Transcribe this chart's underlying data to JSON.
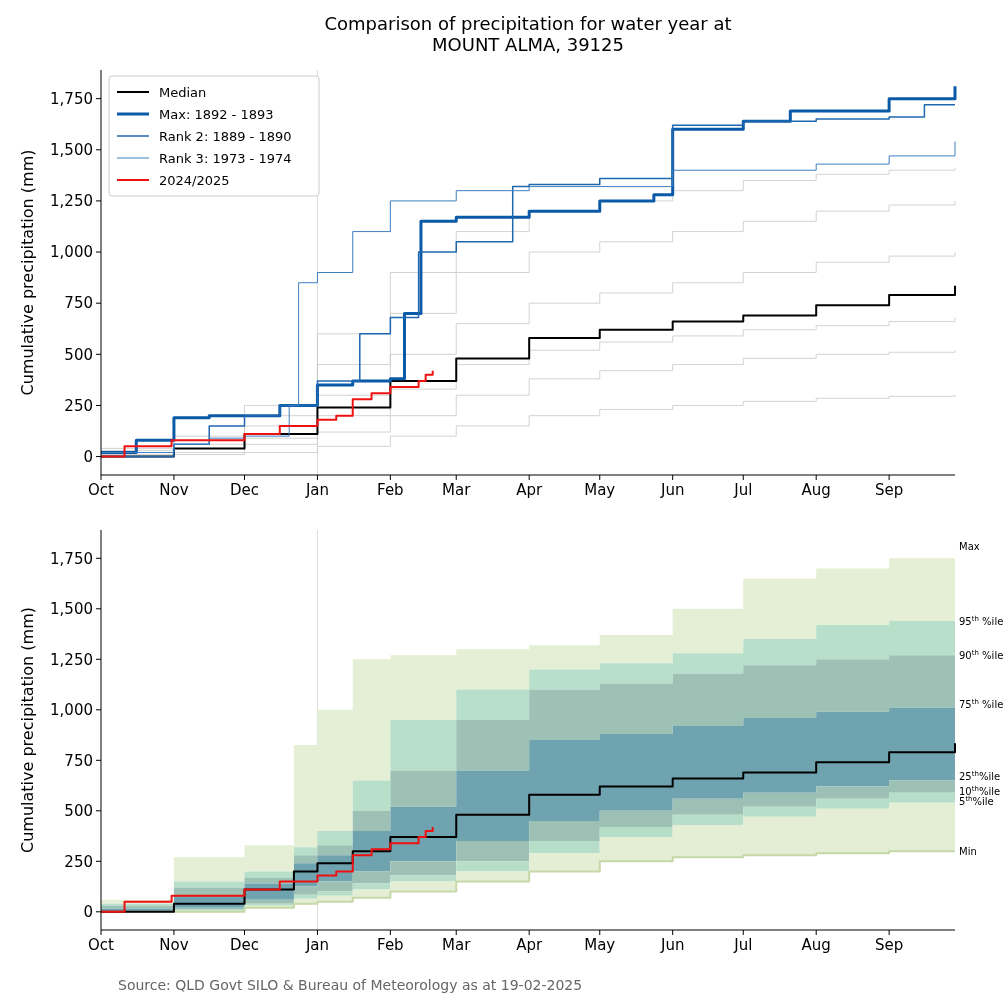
{
  "chart_data": [
    {
      "type": "step",
      "title": "Comparison of precipitation for water year at\nMOUNT ALMA, 39125",
      "ylabel": "Cumulative precipitation (mm)",
      "legend": "top left",
      "xlim": [
        "2024-10-01",
        "2025-09-29"
      ],
      "xticks": [
        {
          "value": "2024-10-01",
          "label": "Oct"
        },
        {
          "value": "2024-11-01",
          "label": "Nov"
        },
        {
          "value": "2024-12-01",
          "label": "Dec"
        },
        {
          "value": "2025-01-01",
          "label": "Jan"
        },
        {
          "value": "2025-02-01",
          "label": "Feb"
        },
        {
          "value": "2025-03-01",
          "label": "Mar"
        },
        {
          "value": "2025-04-01",
          "label": "Apr"
        },
        {
          "value": "2025-05-01",
          "label": "May"
        },
        {
          "value": "2025-06-01",
          "label": "Jun"
        },
        {
          "value": "2025-07-01",
          "label": "Jul"
        },
        {
          "value": "2025-08-01",
          "label": "Aug"
        },
        {
          "value": "2025-09-01",
          "label": "Sep"
        }
      ],
      "ylim": [
        -90,
        1890
      ],
      "yticks": [
        0,
        250,
        500,
        750,
        {
          "value": 1000,
          "label": "1,000"
        },
        {
          "value": 1250,
          "label": "1,250"
        },
        {
          "value": 1500,
          "label": "1,500"
        },
        {
          "value": 1750,
          "label": "1,750"
        }
      ],
      "ref_lines": [
        {
          "axis": "x",
          "value": "2025-01-01",
          "label": null,
          "color": "#dddddd"
        }
      ],
      "x": [
        "2024-10-01",
        "2024-11-01",
        "2024-12-01",
        "2025-01-01",
        "2025-02-01",
        "2025-03-01",
        "2025-04-01",
        "2025-05-01",
        "2025-06-01",
        "2025-07-01",
        "2025-08-01",
        "2025-09-01",
        "2025-09-29"
      ],
      "series": [
        {
          "color": "#c8c8c8",
          "values": [
            0,
            10,
            20,
            50,
            100,
            150,
            200,
            230,
            250,
            270,
            285,
            295,
            300
          ]
        },
        {
          "color": "#c8c8c8",
          "values": [
            0,
            20,
            60,
            120,
            200,
            300,
            380,
            420,
            450,
            480,
            500,
            510,
            520
          ]
        },
        {
          "color": "#c8c8c8",
          "values": [
            10,
            40,
            90,
            200,
            330,
            450,
            520,
            560,
            590,
            620,
            640,
            660,
            680
          ]
        },
        {
          "color": "#c8c8c8",
          "values": [
            20,
            60,
            150,
            300,
            500,
            650,
            750,
            800,
            850,
            900,
            950,
            980,
            1000
          ]
        },
        {
          "color": "#c8c8c8",
          "values": [
            30,
            80,
            200,
            450,
            700,
            900,
            1000,
            1050,
            1100,
            1150,
            1200,
            1230,
            1250
          ]
        },
        {
          "color": "#c8c8c8",
          "values": [
            40,
            100,
            250,
            600,
            900,
            1100,
            1200,
            1250,
            1300,
            1350,
            1380,
            1400,
            1410
          ]
        },
        {
          "name": "Median",
          "color": "#000000",
          "values": [
            0,
            40,
            110,
            240,
            370,
            480,
            580,
            620,
            660,
            690,
            740,
            790,
            835
          ]
        },
        {
          "name": "Max: 1892 - 1893",
          "color": "#0b5aa8",
          "x": [
            "2024-10-01",
            "2024-10-16",
            "2024-11-01",
            "2024-11-16",
            "2024-12-01",
            "2024-12-16",
            "2025-01-01",
            "2025-01-16",
            "2025-02-01",
            "2025-02-07",
            "2025-02-14",
            "2025-03-01",
            "2025-04-01",
            "2025-05-01",
            "2025-05-24",
            "2025-06-01",
            "2025-07-01",
            "2025-07-21",
            "2025-09-01",
            "2025-09-29"
          ],
          "values": [
            20,
            80,
            190,
            200,
            200,
            250,
            350,
            370,
            380,
            700,
            1150,
            1170,
            1200,
            1250,
            1280,
            1600,
            1640,
            1690,
            1750,
            1810
          ]
        },
        {
          "name": "Rank 2: 1889 - 1890",
          "color": "#1f68b0",
          "x": [
            "2024-10-01",
            "2024-11-01",
            "2024-11-16",
            "2024-12-01",
            "2024-12-16",
            "2025-01-01",
            "2025-01-19",
            "2025-02-01",
            "2025-02-13",
            "2025-03-01",
            "2025-03-25",
            "2025-04-01",
            "2025-05-01",
            "2025-06-01",
            "2025-07-01",
            "2025-08-01",
            "2025-09-01",
            "2025-09-16",
            "2025-09-29"
          ],
          "values": [
            0,
            60,
            150,
            200,
            250,
            370,
            600,
            680,
            1000,
            1050,
            1320,
            1330,
            1360,
            1620,
            1640,
            1650,
            1660,
            1720,
            1720
          ]
        },
        {
          "name": "Rank 3: 1973 - 1974",
          "color": "#3d7fc0",
          "x": [
            "2024-10-01",
            "2024-11-01",
            "2024-11-16",
            "2024-12-01",
            "2024-12-20",
            "2024-12-24",
            "2025-01-01",
            "2025-01-16",
            "2025-02-01",
            "2025-03-01",
            "2025-04-01",
            "2025-06-01",
            "2025-08-01",
            "2025-09-01",
            "2025-09-29"
          ],
          "values": [
            20,
            60,
            90,
            100,
            250,
            850,
            900,
            1100,
            1250,
            1300,
            1320,
            1400,
            1430,
            1470,
            1540
          ]
        },
        {
          "name": "2024/2025",
          "color": "#ee1111",
          "x": [
            "2024-10-01",
            "2024-10-09",
            "2024-10-11",
            "2024-10-31",
            "2024-12-01",
            "2024-12-16",
            "2025-01-01",
            "2025-01-09",
            "2025-01-16",
            "2025-01-24",
            "2025-02-01",
            "2025-02-13",
            "2025-02-16",
            "2025-02-19"
          ],
          "values": [
            0,
            0,
            50,
            80,
            110,
            150,
            180,
            200,
            280,
            310,
            340,
            370,
            400,
            420
          ]
        }
      ]
    },
    {
      "type": "step",
      "ylabel": "Cumulative precipitation (mm)",
      "xlim": [
        "2024-10-01",
        "2025-09-29"
      ],
      "xticks": [
        {
          "value": "2024-10-01",
          "label": "Oct"
        },
        {
          "value": "2024-11-01",
          "label": "Nov"
        },
        {
          "value": "2024-12-01",
          "label": "Dec"
        },
        {
          "value": "2025-01-01",
          "label": "Jan"
        },
        {
          "value": "2025-02-01",
          "label": "Feb"
        },
        {
          "value": "2025-03-01",
          "label": "Mar"
        },
        {
          "value": "2025-04-01",
          "label": "Apr"
        },
        {
          "value": "2025-05-01",
          "label": "May"
        },
        {
          "value": "2025-06-01",
          "label": "Jun"
        },
        {
          "value": "2025-07-01",
          "label": "Jul"
        },
        {
          "value": "2025-08-01",
          "label": "Aug"
        },
        {
          "value": "2025-09-01",
          "label": "Sep"
        }
      ],
      "ylim": [
        -90,
        1890
      ],
      "yticks": [
        0,
        250,
        500,
        750,
        {
          "value": 1000,
          "label": "1,000"
        },
        {
          "value": 1250,
          "label": "1,250"
        },
        {
          "value": 1500,
          "label": "1,500"
        },
        {
          "value": 1750,
          "label": "1,750"
        }
      ],
      "ref_lines": [
        {
          "axis": "x",
          "value": "2025-01-01",
          "label": null,
          "color": "#dddddd"
        }
      ],
      "x": [
        "2024-10-01",
        "2024-11-01",
        "2024-12-01",
        "2024-12-22",
        "2025-01-01",
        "2025-01-16",
        "2025-02-01",
        "2025-03-01",
        "2025-04-01",
        "2025-05-01",
        "2025-06-01",
        "2025-07-01",
        "2025-08-01",
        "2025-09-01",
        "2025-09-29"
      ],
      "series": [
        {
          "type": "area",
          "name": "Max",
          "color": "#e5efd5",
          "values": [
            60,
            270,
            330,
            826,
            1000,
            1250,
            1270,
            1300,
            1320,
            1370,
            1500,
            1650,
            1700,
            1750,
            1810
          ]
        },
        {
          "type": "area",
          "name": "95$^{th}$ %ile",
          "color": "#b8dfc9",
          "values": [
            40,
            150,
            200,
            320,
            400,
            650,
            950,
            1100,
            1200,
            1230,
            1280,
            1350,
            1420,
            1440,
            1440
          ]
        },
        {
          "type": "area",
          "name": "90$^{th}$ %ile",
          "color": "#9dc2b5",
          "values": [
            30,
            120,
            170,
            280,
            330,
            500,
            700,
            950,
            1100,
            1130,
            1180,
            1220,
            1250,
            1270,
            1270
          ]
        },
        {
          "type": "area",
          "name": "75$^{th}$ %ile",
          "color": "#6fa3b0",
          "values": [
            15,
            80,
            140,
            240,
            280,
            400,
            520,
            700,
            850,
            880,
            920,
            960,
            990,
            1010,
            1030
          ]
        },
        {
          "type": "area",
          "name": "25$^{th}$%ile",
          "color": "#9cc1b4",
          "values": [
            0,
            20,
            60,
            125,
            150,
            200,
            250,
            350,
            450,
            500,
            560,
            590,
            620,
            650,
            670
          ]
        },
        {
          "type": "area",
          "name": "10$^{th}$%ile",
          "color": "#b7dec8",
          "values": [
            0,
            10,
            40,
            85,
            100,
            140,
            180,
            250,
            350,
            420,
            480,
            520,
            560,
            590,
            600
          ]
        },
        {
          "type": "area",
          "name": "5$^{th}$%ile",
          "color": "#e4eed4",
          "values": [
            0,
            5,
            30,
            65,
            80,
            110,
            150,
            200,
            290,
            370,
            430,
            470,
            510,
            540,
            550
          ]
        },
        {
          "type": "step",
          "name": "Min",
          "color": "#c5d8a8",
          "values": [
            0,
            0,
            20,
            40,
            50,
            70,
            100,
            150,
            200,
            250,
            270,
            280,
            290,
            300,
            300
          ]
        },
        {
          "color": "#000000",
          "values": [
            0,
            40,
            110,
            200,
            240,
            300,
            370,
            480,
            580,
            620,
            660,
            690,
            740,
            790,
            835
          ]
        },
        {
          "color": "#ee1111",
          "x": [
            "2024-10-01",
            "2024-10-09",
            "2024-10-11",
            "2024-10-31",
            "2024-12-01",
            "2024-12-16",
            "2025-01-01",
            "2025-01-09",
            "2025-01-16",
            "2025-01-24",
            "2025-02-01",
            "2025-02-13",
            "2025-02-16",
            "2025-02-19"
          ],
          "values": [
            0,
            0,
            50,
            80,
            110,
            150,
            180,
            200,
            280,
            310,
            340,
            370,
            400,
            420
          ]
        }
      ],
      "annotations": [
        "Source: QLD Govt SILO & Bureau of Meteorology as at 19-02-2025"
      ]
    }
  ]
}
